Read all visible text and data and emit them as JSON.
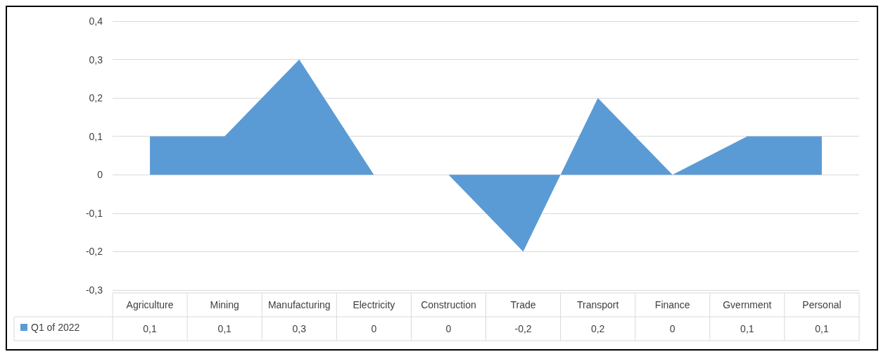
{
  "chart_data": {
    "type": "area",
    "categories": [
      "Agriculture",
      "Mining",
      "Manufacturing",
      "Electricity",
      "Construction",
      "Trade",
      "Transport",
      "Finance",
      "Gvernment",
      "Personal"
    ],
    "series": [
      {
        "name": "Q1 of 2022",
        "color": "#5b9bd5",
        "values": [
          0.1,
          0.1,
          0.3,
          0,
          0,
          -0.2,
          0.2,
          0,
          0.1,
          0.1
        ],
        "value_labels": [
          "0,1",
          "0,1",
          "0,3",
          "0",
          "0",
          "-0,2",
          "0,2",
          "0",
          "0,1",
          "0,1"
        ]
      }
    ],
    "ylim": [
      -0.3,
      0.4
    ],
    "yticks": [
      {
        "value": -0.3,
        "label": "-0,3"
      },
      {
        "value": -0.2,
        "label": "-0,2"
      },
      {
        "value": -0.1,
        "label": "-0,1"
      },
      {
        "value": 0,
        "label": "0"
      },
      {
        "value": 0.1,
        "label": "0,1"
      },
      {
        "value": 0.2,
        "label": "0,2"
      },
      {
        "value": 0.3,
        "label": "0,3"
      },
      {
        "value": 0.4,
        "label": "0,4"
      }
    ],
    "grid": "y",
    "legend": "bottom left",
    "marker": "none"
  }
}
